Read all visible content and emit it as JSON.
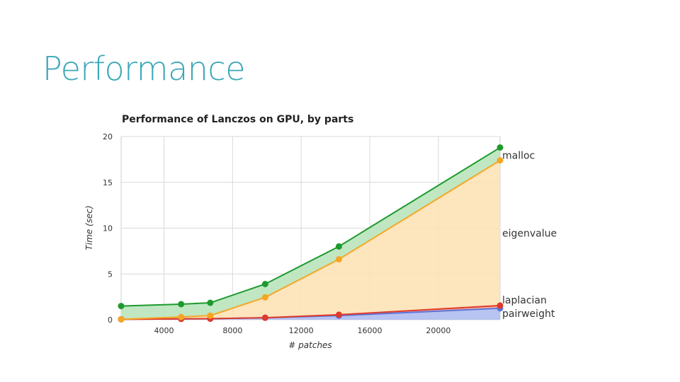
{
  "slide": {
    "title": "Performance"
  },
  "chart_data": {
    "type": "area",
    "title": "Performance of Lanczos on GPU, by parts",
    "xlabel": "# patches",
    "ylabel": "Time (sec)",
    "xlim": [
      1500,
      23600
    ],
    "ylim": [
      0,
      20
    ],
    "xticks": [
      4000,
      8000,
      12000,
      16000,
      20000
    ],
    "yticks": [
      0,
      5,
      10,
      15,
      20
    ],
    "grid": true,
    "stacked": true,
    "x": [
      1500,
      5000,
      6700,
      9900,
      14200,
      23600
    ],
    "series": [
      {
        "name": "pairweight",
        "color": "#5b74d8",
        "fill": "#aab8ee",
        "values": [
          0.05,
          0.1,
          0.12,
          0.22,
          0.45,
          1.25
        ]
      },
      {
        "name": "laplacian",
        "color": "#e03a2a",
        "fill": "#f0a090",
        "values": [
          0.05,
          0.1,
          0.12,
          0.22,
          0.55,
          1.55
        ]
      },
      {
        "name": "eigenvalue",
        "color": "#f5a623",
        "fill": "#fde0b2",
        "values": [
          0.05,
          0.3,
          0.45,
          2.45,
          6.6,
          17.4
        ]
      },
      {
        "name": "malloc",
        "color": "#1e9a2e",
        "fill": "#b5e3b7",
        "values": [
          1.5,
          1.7,
          1.85,
          3.9,
          8.0,
          18.8
        ]
      }
    ]
  }
}
